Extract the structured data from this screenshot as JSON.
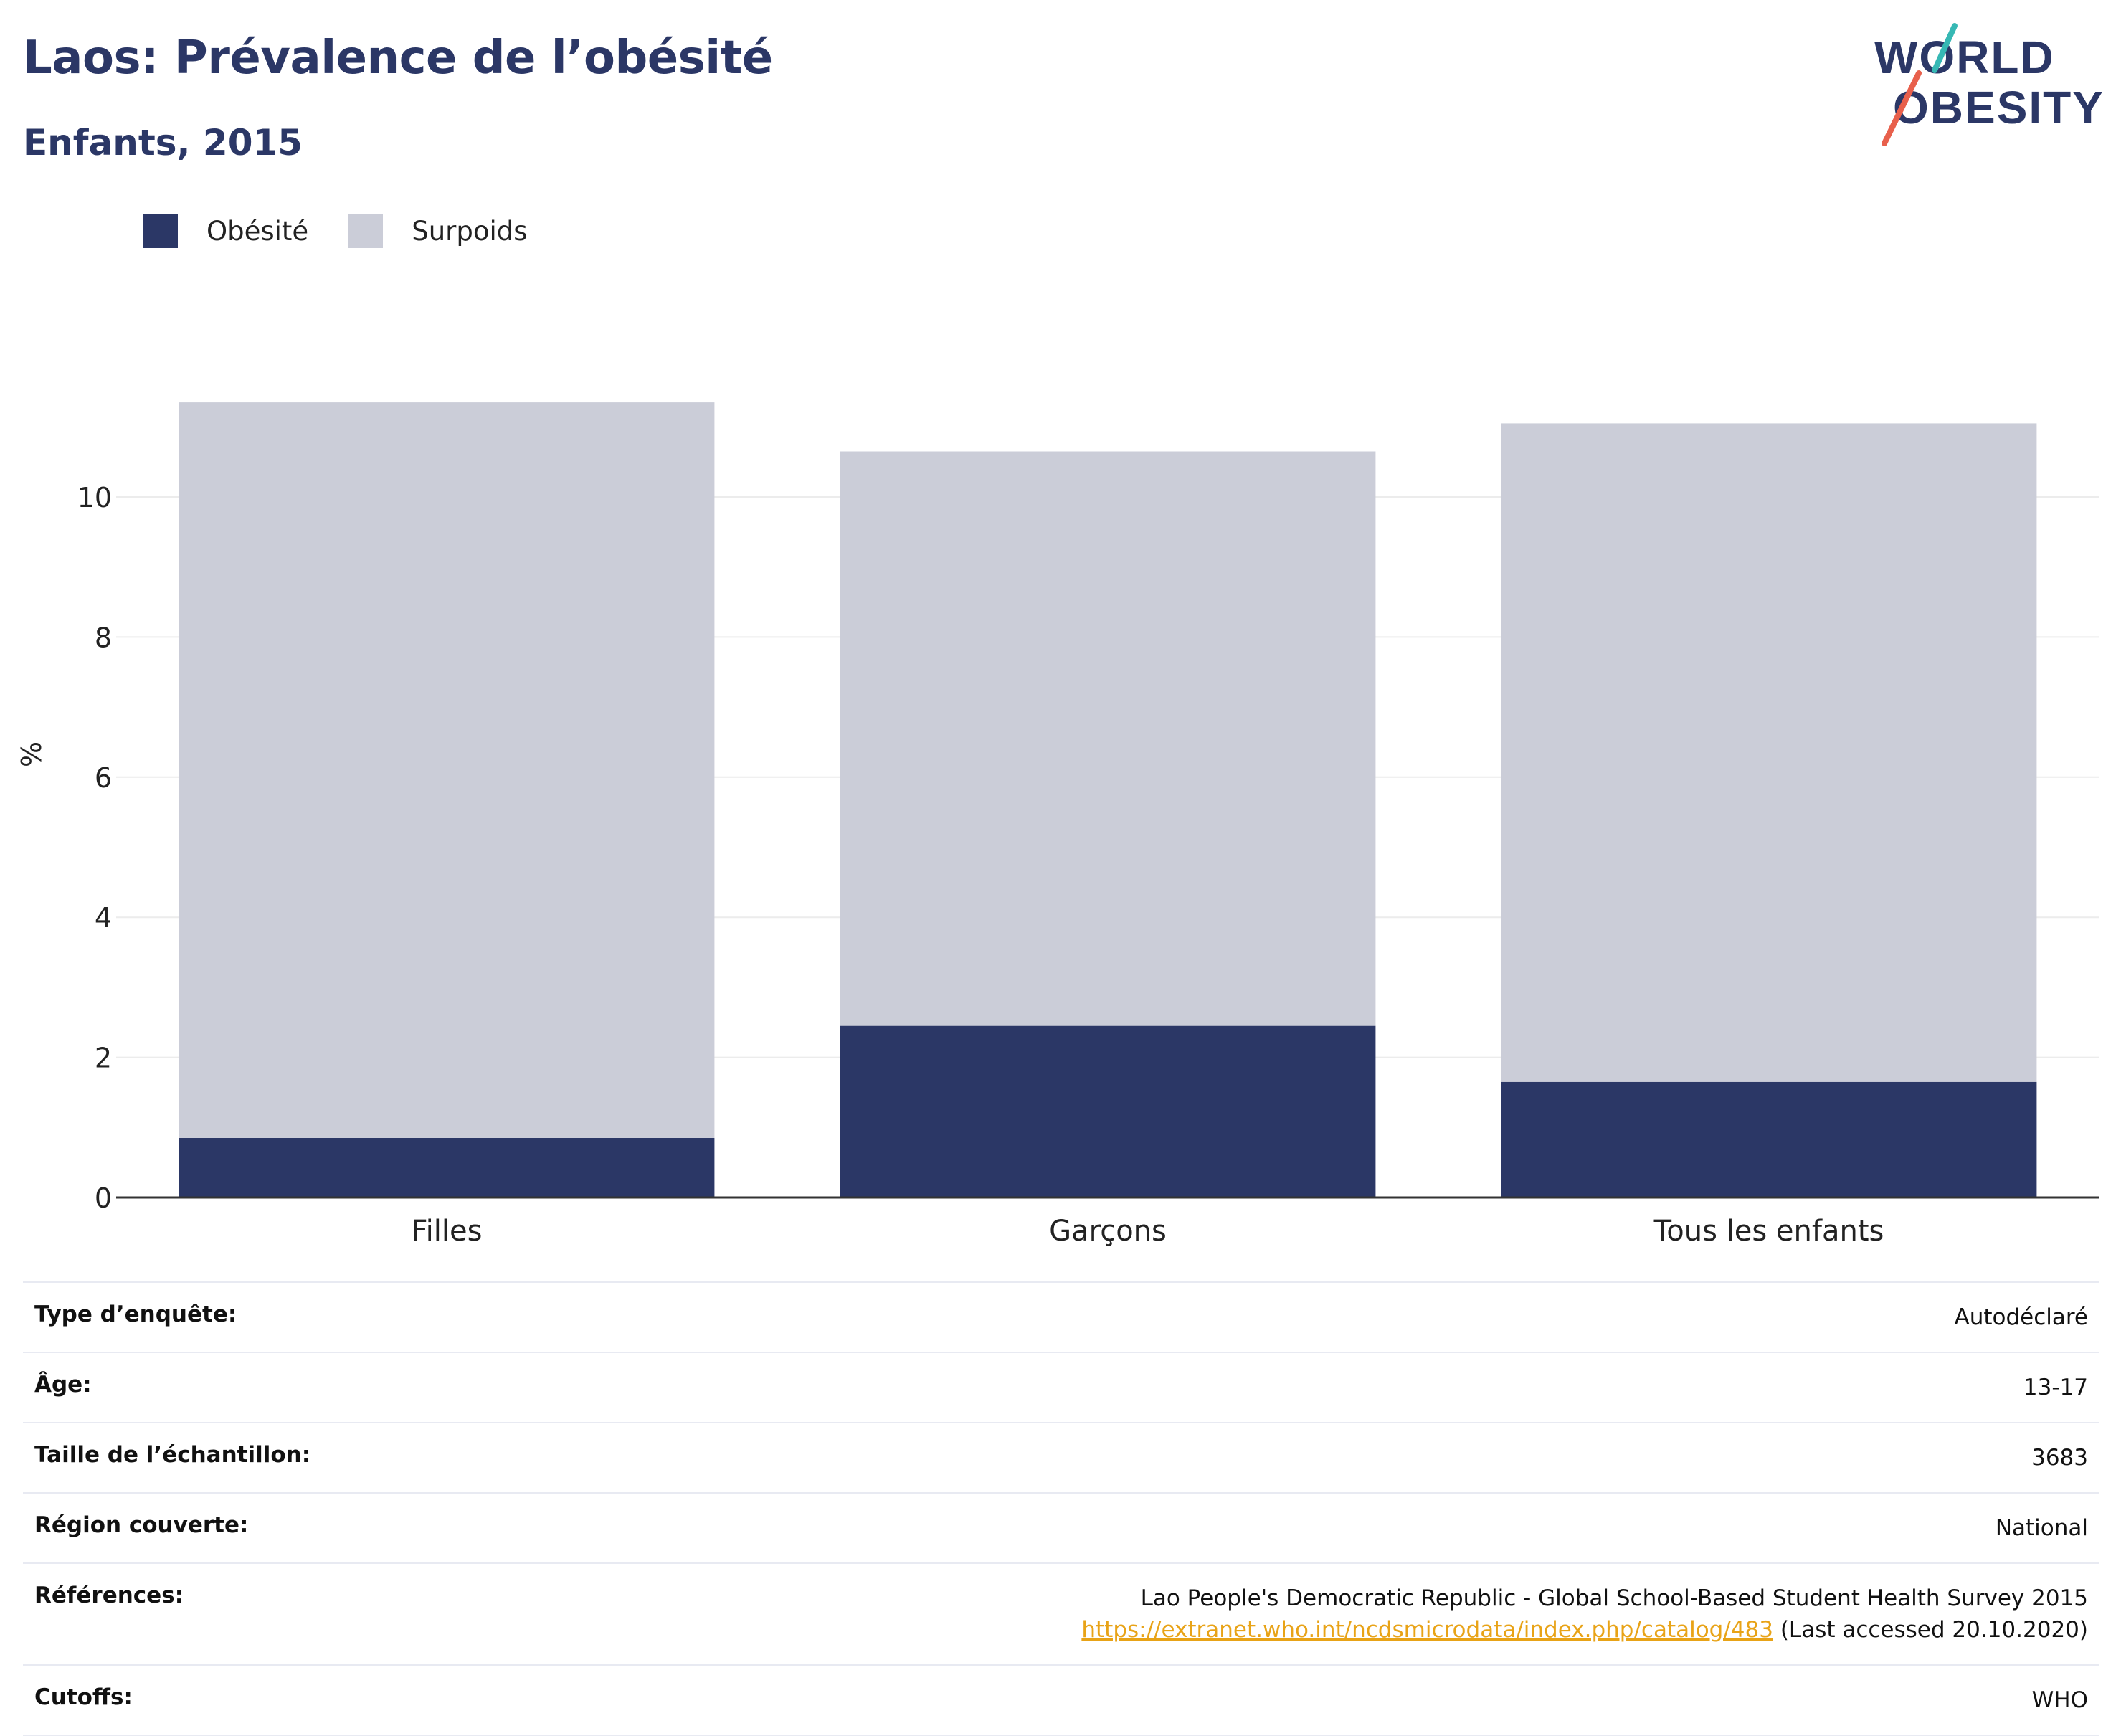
{
  "header": {
    "title": "Laos: Prévalence de l’obésité",
    "subtitle": "Enfants, 2015"
  },
  "logo": {
    "line1": "WORLD",
    "line2": "OBESITY"
  },
  "legend": [
    {
      "label": "Obésité",
      "color": "#2b3766"
    },
    {
      "label": "Surpoids",
      "color": "#cbcdd8"
    }
  ],
  "chart_data": {
    "type": "bar",
    "stacked": true,
    "categories": [
      "Filles",
      "Garçons",
      "Tous les enfants"
    ],
    "series": [
      {
        "name": "Obésité",
        "values": [
          0.85,
          2.45,
          1.65
        ],
        "color": "#2b3766"
      },
      {
        "name": "Surpoids",
        "values": [
          10.5,
          8.2,
          9.4
        ],
        "color": "#cbcdd8"
      }
    ],
    "ylabel": "%",
    "ylim": [
      0,
      11.8
    ],
    "yticks": [
      0,
      2,
      4,
      6,
      8,
      10
    ],
    "grid": true,
    "legend_position": "top-left"
  },
  "details": [
    {
      "key": "Type d’enquête:",
      "value": "Autodéclaré"
    },
    {
      "key": "Âge:",
      "value": "13-17"
    },
    {
      "key": "Taille de l’échantillon:",
      "value": "3683"
    },
    {
      "key": "Région couverte:",
      "value": "National"
    },
    {
      "key": "Références:",
      "value": "Lao People's Democratic Republic - Global School-Based Student Health Survey 2015",
      "link": "https://extranet.who.int/ncdsmicrodata/index.php/catalog/483",
      "note": "(Last accessed 20.10.2020)"
    },
    {
      "key": "Cutoffs:",
      "value": "WHO"
    }
  ]
}
